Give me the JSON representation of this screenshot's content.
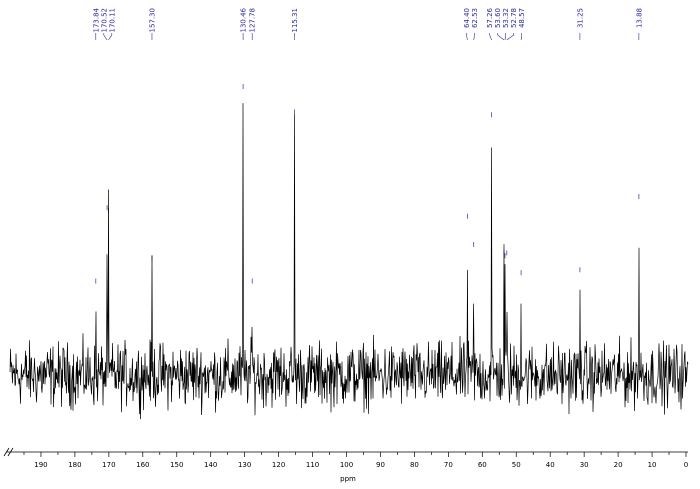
{
  "chart_data": {
    "type": "line",
    "xlabel": "ppm",
    "xlim": [
      199,
      0
    ],
    "x_reversed": true,
    "x_ticks": [
      190,
      180,
      170,
      160,
      150,
      140,
      130,
      120,
      110,
      100,
      90,
      80,
      70,
      60,
      50,
      40,
      30,
      20,
      10,
      0
    ],
    "y_unit": "relative intensity",
    "ylim": [
      -12,
      100
    ],
    "grid": false,
    "peaks": [
      {
        "ppm": 173.84,
        "label": "173.84",
        "intensity": 31
      },
      {
        "ppm": 170.52,
        "label": "170.52",
        "intensity": 57
      },
      {
        "ppm": 170.11,
        "label": "170.11",
        "intensity": 56
      },
      {
        "ppm": 157.3,
        "label": "157.30",
        "intensity": 39
      },
      {
        "ppm": 130.46,
        "label": "130.46",
        "intensity": 100
      },
      {
        "ppm": 127.78,
        "label": "127.78",
        "intensity": 31
      },
      {
        "ppm": 115.31,
        "label": "115.31",
        "intensity": 91
      },
      {
        "ppm": 64.4,
        "label": "64.40",
        "intensity": 54
      },
      {
        "ppm": 62.53,
        "label": "62.53",
        "intensity": 44
      },
      {
        "ppm": 57.26,
        "label": "57.26",
        "intensity": 90
      },
      {
        "ppm": 53.6,
        "label": "53.60",
        "intensity": 41
      },
      {
        "ppm": 53.32,
        "label": "53.32",
        "intensity": 40
      },
      {
        "ppm": 52.78,
        "label": "52.78",
        "intensity": 41
      },
      {
        "ppm": 48.57,
        "label": "48.57",
        "intensity": 34
      },
      {
        "ppm": 31.25,
        "label": "31.25",
        "intensity": 35
      },
      {
        "ppm": 13.88,
        "label": "13.88",
        "intensity": 61
      }
    ],
    "colors": {
      "spectrum": "#000000",
      "peak_labels": "#2a2a9a"
    }
  }
}
